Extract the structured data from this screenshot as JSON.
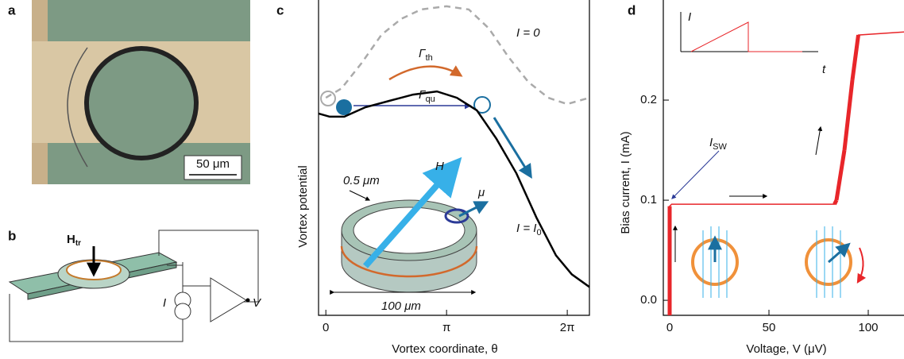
{
  "panels": {
    "a": {
      "label": "a",
      "scale_bar": "50 μm"
    },
    "b": {
      "label": "b",
      "field": {
        "text": "H",
        "sub": "tr"
      },
      "current": "I",
      "voltage": "V"
    }
  },
  "chart_data": [
    {
      "type": "line",
      "label": "c",
      "xlabel": "Vortex coordinate, θ",
      "ylabel": "Vortex potential",
      "xlim": [
        -0.19,
        6.86
      ],
      "ylim": [
        0,
        100
      ],
      "xticks": [
        0,
        {
          "value": 3.1416,
          "label": "π"
        },
        {
          "value": 6.2832,
          "label": "2π"
        }
      ],
      "series": [
        {
          "color": "#aaaaaa",
          "dashed": true,
          "x": [
            0,
            0.41,
            0.93,
            1.45,
            1.96,
            2.48,
            3.14,
            3.72,
            4.24,
            4.75,
            5.27,
            5.79,
            6.28,
            6.86
          ],
          "values": [
            69,
            72,
            80,
            89,
            94,
            97,
            98,
            97,
            91,
            82,
            74,
            69,
            67,
            69
          ]
        },
        {
          "color": "#000000",
          "dashed": false,
          "x": [
            -0.19,
            0.1,
            0.48,
            1.03,
            1.65,
            2.27,
            2.89,
            3.41,
            3.93,
            4.44,
            4.96,
            5.48,
            5.99,
            6.4,
            6.86
          ],
          "values": [
            64,
            63,
            63,
            66,
            68,
            70,
            71,
            69,
            65,
            56,
            45,
            31,
            19,
            13,
            9
          ]
        }
      ],
      "annotations": [
        {
          "text": "I = 0"
        },
        {
          "text": "I = I",
          "sub": "0"
        },
        {
          "text": "Γ",
          "sub": "th"
        },
        {
          "text": "Γ",
          "sub": "qu"
        },
        {
          "text": "0.5 μm"
        },
        {
          "text": "H"
        },
        {
          "text": "μ"
        },
        {
          "text": "100 μm"
        }
      ]
    },
    {
      "type": "line",
      "label": "d",
      "xlabel": "Voltage, V (μV)",
      "ylabel": "Bias current, I (mA)",
      "xlim": [
        -3.2,
        118
      ],
      "ylim": [
        -0.015,
        0.3
      ],
      "xticks": [
        0,
        50,
        100
      ],
      "yticks": [
        {
          "value": 0,
          "label": "0.0"
        },
        0.1,
        0.2
      ],
      "series": [
        {
          "color": "#e8262a",
          "dashed": false,
          "x": [
            0,
            0,
            1,
            83,
            84,
            88,
            92,
            95,
            118
          ],
          "values": [
            -0.015,
            0.094,
            0.096,
            0.096,
            0.1,
            0.15,
            0.22,
            0.265,
            0.268
          ]
        }
      ],
      "annotations": [
        {
          "text": "I",
          "sub": "SW"
        },
        {
          "text": "I"
        },
        {
          "text": "t"
        }
      ]
    }
  ]
}
